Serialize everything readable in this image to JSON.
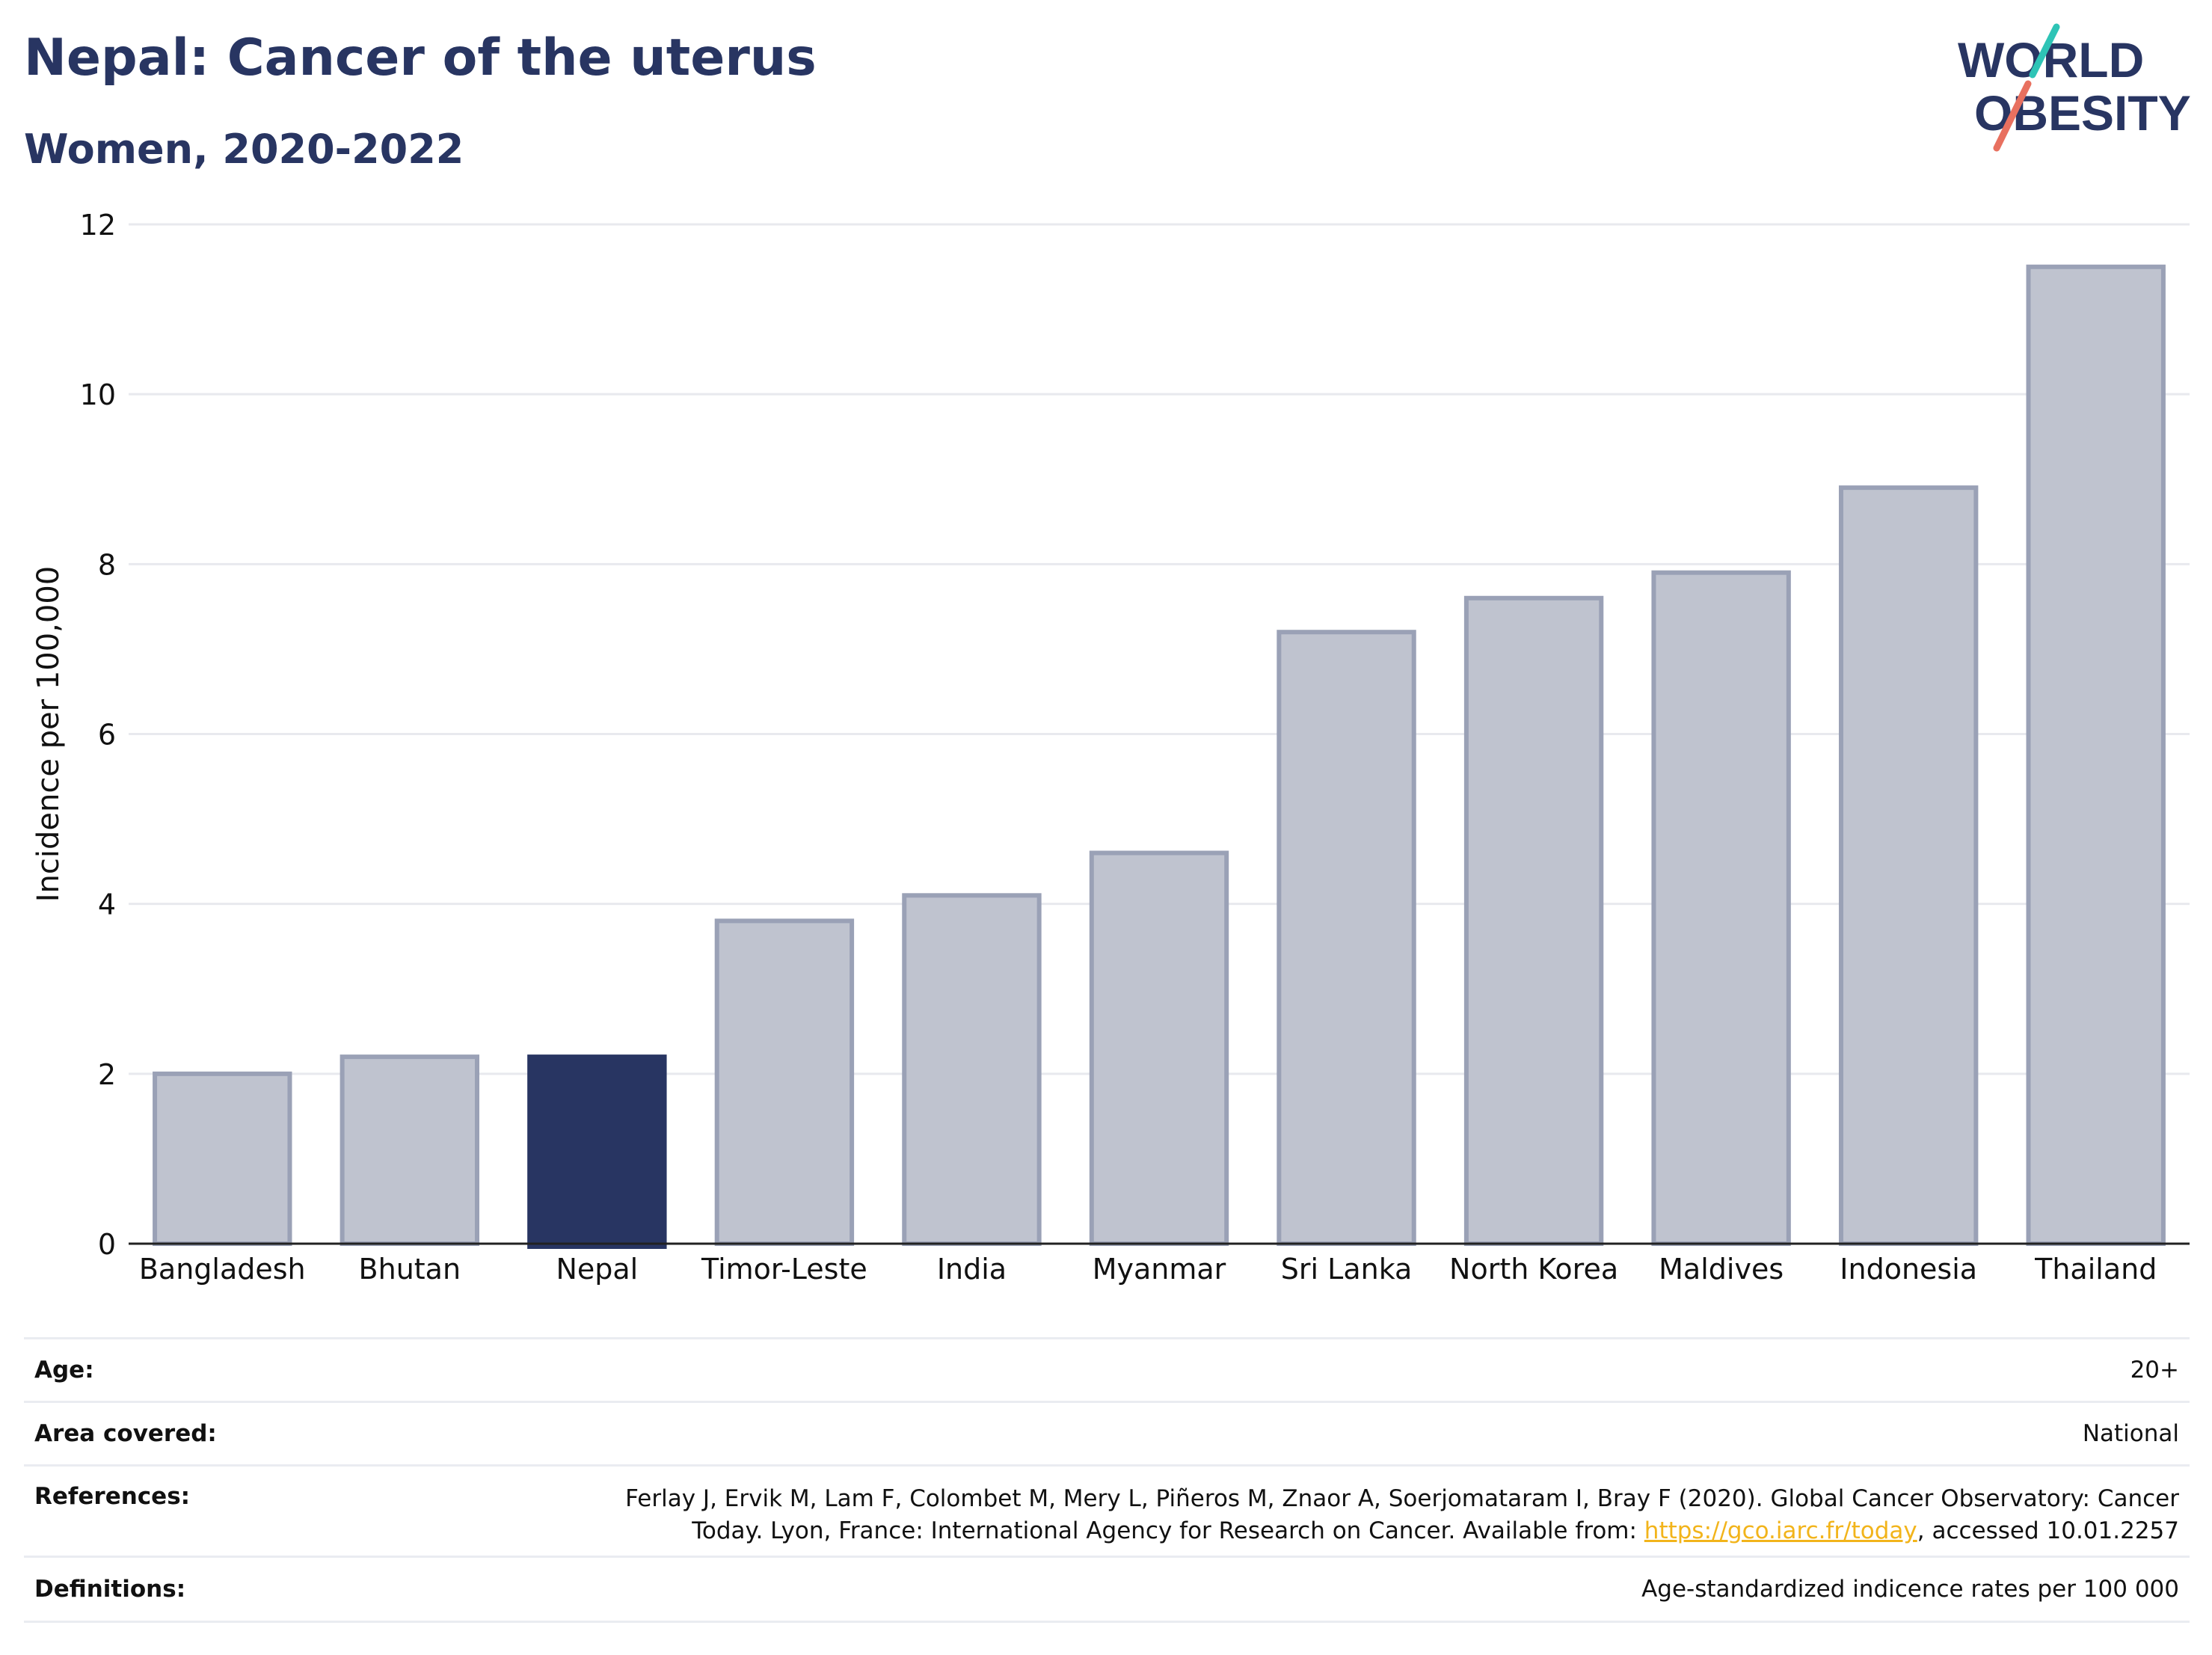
{
  "header": {
    "title": "Nepal: Cancer of the uterus",
    "subtitle": "Women, 2020-2022"
  },
  "logo": {
    "line1": "WORLD",
    "line2": "OBESITY",
    "colors": [
      "#283562",
      "#2ec4b6",
      "#e8705f"
    ]
  },
  "chart_data": {
    "type": "bar",
    "categories": [
      "Bangladesh",
      "Bhutan",
      "Nepal",
      "Timor-Leste",
      "India",
      "Myanmar",
      "Sri Lanka",
      "North Korea",
      "Maldives",
      "Indonesia",
      "Thailand"
    ],
    "values": [
      2.0,
      2.2,
      2.2,
      3.8,
      4.1,
      4.6,
      7.2,
      7.6,
      7.9,
      8.9,
      11.5
    ],
    "highlight": "Nepal",
    "ylabel": "Incidence per 100,000",
    "ylim": [
      0,
      12
    ],
    "yticks": [
      "0",
      "2",
      "4",
      "6",
      "8",
      "10",
      "12"
    ],
    "grid": true,
    "colors": {
      "highlight": "#283562",
      "bar_fill": "#bfc3cf",
      "bar_stroke": "#9aa1b6"
    }
  },
  "meta": {
    "age_label": "Age:",
    "age_value": "20+",
    "area_label": "Area covered:",
    "area_value": "National",
    "references_label": "References:",
    "references_text_line1": "Ferlay J, Ervik M, Lam F, Colombet M, Mery L, Piñeros M, Znaor A, Soerjomataram I, Bray F (2020). Global Cancer Observatory: Cancer",
    "references_text_line2a": "Today. Lyon, France: International Agency for Research on Cancer. Available from: ",
    "references_link": "https://gco.iarc.fr/today",
    "references_text_line2b": ", accessed 10.01.2257",
    "definitions_label": "Definitions:",
    "definitions_value": "Age-standardized indicence rates per 100 000"
  }
}
